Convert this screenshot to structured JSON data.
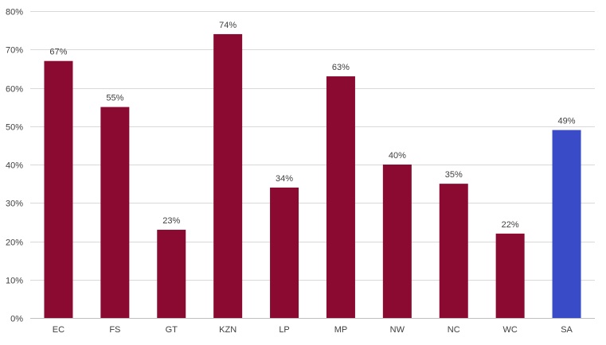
{
  "chart_data": {
    "type": "bar",
    "title": "",
    "xlabel": "",
    "ylabel": "",
    "categories": [
      "EC",
      "FS",
      "GT",
      "KZN",
      "LP",
      "MP",
      "NW",
      "NC",
      "WC",
      "SA"
    ],
    "values": [
      67,
      55,
      23,
      74,
      34,
      63,
      40,
      35,
      22,
      49
    ],
    "data_labels": [
      "67%",
      "55%",
      "23%",
      "74%",
      "34%",
      "63%",
      "40%",
      "35%",
      "22%",
      "49%"
    ],
    "ylim": [
      0,
      80
    ],
    "y_ticks": [
      0,
      10,
      20,
      30,
      40,
      50,
      60,
      70,
      80
    ],
    "y_tick_labels": [
      "0%",
      "10%",
      "20%",
      "30%",
      "40%",
      "50%",
      "60%",
      "70%",
      "80%"
    ],
    "grid": true,
    "legend": "none",
    "colors": {
      "default_bar": "#8b0a32",
      "highlight_bar": "#3a4bc8",
      "gridline": "#d9d9d9",
      "text": "#404040"
    },
    "highlight_categories": [
      "SA"
    ]
  }
}
